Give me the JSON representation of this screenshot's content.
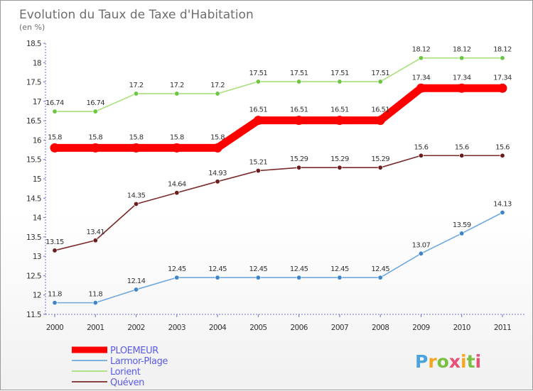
{
  "chart_data": {
    "type": "line",
    "title": "Evolution du Taux de Taxe d'Habitation",
    "ylabel": "(en %)",
    "xlabel": "",
    "categories": [
      "2000",
      "2001",
      "2002",
      "2003",
      "2004",
      "2005",
      "2006",
      "2007",
      "2008",
      "2009",
      "2010",
      "2011"
    ],
    "ylim": [
      11.5,
      18.5
    ],
    "yticks": [
      "11.5",
      "12",
      "12.5",
      "13",
      "13.5",
      "14",
      "14.5",
      "15",
      "15.5",
      "16",
      "16.5",
      "17",
      "17.5",
      "18",
      "18.5"
    ],
    "grid": false,
    "legend_position": "bottom-left",
    "series": [
      {
        "name": "PLOEMEUR",
        "color": "#ff0000",
        "emphasis": true,
        "values": [
          15.8,
          15.8,
          15.8,
          15.8,
          15.8,
          16.51,
          16.51,
          16.51,
          16.51,
          17.34,
          17.34,
          17.34
        ],
        "labels": [
          "15.8",
          "15.8",
          "15.8",
          "15.8",
          "15.8",
          "16.51",
          "16.51",
          "16.51",
          "16.51",
          "17.34",
          "17.34",
          "17.34"
        ]
      },
      {
        "name": "Larmor-Plage",
        "color": "#6fa8dc",
        "marker": "#3d85c6",
        "values": [
          11.8,
          11.8,
          12.14,
          12.45,
          12.45,
          12.45,
          12.45,
          12.45,
          12.45,
          13.07,
          13.59,
          14.13
        ],
        "labels": [
          "11.8",
          "11.8",
          "12.14",
          "12.45",
          "12.45",
          "12.45",
          "12.45",
          "12.45",
          "12.45",
          "13.07",
          "13.59",
          "14.13"
        ]
      },
      {
        "name": "Lorient",
        "color": "#a6e07a",
        "marker": "#6cc644",
        "values": [
          16.74,
          16.74,
          17.2,
          17.2,
          17.2,
          17.51,
          17.51,
          17.51,
          17.51,
          18.12,
          18.12,
          18.12
        ],
        "labels": [
          "16.74",
          "16.74",
          "17.2",
          "17.2",
          "17.2",
          "17.51",
          "17.51",
          "17.51",
          "17.51",
          "18.12",
          "18.12",
          "18.12"
        ]
      },
      {
        "name": "Quéven",
        "color": "#7a2a2a",
        "marker": "#6b1d1d",
        "values": [
          13.15,
          13.41,
          14.35,
          14.64,
          14.93,
          15.21,
          15.29,
          15.29,
          15.29,
          15.6,
          15.6,
          15.6
        ],
        "labels": [
          "13.15",
          "13.41",
          "14.35",
          "14.64",
          "14.93",
          "15.21",
          "15.29",
          "15.29",
          "15.29",
          "15.6",
          "15.6",
          "15.6"
        ]
      }
    ]
  },
  "brand": {
    "letters": [
      "P",
      "r",
      "o",
      "x",
      "i",
      "t",
      "i"
    ],
    "colors": [
      "#4aa3df",
      "#f5a623",
      "#7ac143",
      "#e94e77",
      "#f5a623",
      "#7ac143",
      "#e94e77"
    ]
  }
}
